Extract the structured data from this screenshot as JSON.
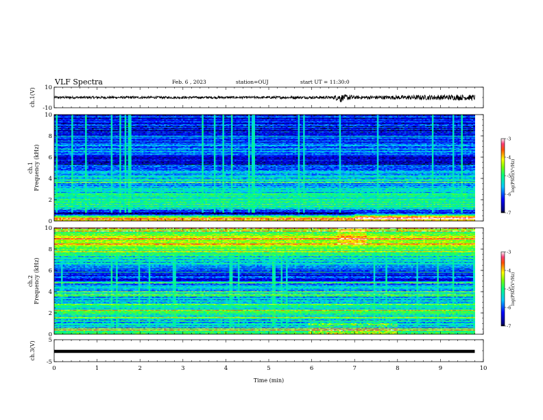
{
  "header": {
    "title": "VLF Spectra",
    "date": "Feb. 6 , 2023",
    "station": "station=OUJ",
    "start": "start UT = 11:30:0"
  },
  "chart_data": [
    {
      "type": "line",
      "panel": "ch1-waveform",
      "ylabel": "ch.1(V)",
      "ylim": [
        -10,
        10
      ],
      "ytick_labels": [
        "10",
        "-10"
      ],
      "xlim": [
        0,
        10
      ],
      "x": [
        0,
        0.5,
        1,
        1.5,
        2,
        2.5,
        3,
        3.5,
        4,
        4.5,
        5,
        5.5,
        6,
        6.5,
        6.68,
        7,
        7.5,
        8,
        8.5,
        9,
        9.5,
        9.8
      ],
      "amplitude_envelope": [
        1.2,
        1.1,
        1.2,
        1.1,
        1.2,
        1.1,
        1.2,
        1.1,
        1.2,
        1.1,
        1.2,
        1.3,
        1.3,
        1.3,
        5.5,
        1.6,
        1.8,
        2.0,
        2.3,
        2.5,
        2.7,
        2.7
      ],
      "baseline": 0
    },
    {
      "type": "heatmap",
      "panel": "ch1-spectrogram",
      "ylabel_channel": "ch.1",
      "ylabel": "Frequency (kHz)",
      "ylim": [
        0,
        10
      ],
      "ytick_labels": [
        "0",
        "2",
        "4",
        "6",
        "8",
        "10"
      ],
      "xlim": [
        0,
        10
      ],
      "data_end_min": 9.8,
      "colorbar": {
        "label": "log(PSD)(V²/Hz)",
        "range": [
          -7,
          -3
        ],
        "tick_labels": [
          "-3",
          "-4",
          "-5",
          "-6",
          "-7"
        ]
      },
      "freq_kHz": [
        0.25,
        0.75,
        1.25,
        1.75,
        2.25,
        2.75,
        3.25,
        3.75,
        4.25,
        4.75,
        5.25,
        5.75,
        6.25,
        6.75,
        7.25,
        7.75,
        8.25,
        8.75,
        9.25,
        9.75
      ],
      "log_psd_profile": [
        -3.8,
        -6.7,
        -5.2,
        -4.9,
        -5.0,
        -5.4,
        -5.6,
        -5.6,
        -5.5,
        -5.8,
        -6.4,
        -6.5,
        -6.0,
        -5.7,
        -6.0,
        -6.1,
        -6.2,
        -6.4,
        -6.3,
        -6.3
      ]
    },
    {
      "type": "heatmap",
      "panel": "ch2-spectrogram",
      "ylabel_channel": "ch.2",
      "ylabel": "Frequency (kHz)",
      "ylim": [
        0,
        10
      ],
      "ytick_labels": [
        "0",
        "2",
        "4",
        "6",
        "8",
        "10"
      ],
      "xlim": [
        0,
        10
      ],
      "data_end_min": 9.8,
      "colorbar": {
        "label": "log(PSD)(V²/Hz)",
        "range": [
          -7,
          -3
        ],
        "tick_labels": [
          "-3",
          "-4",
          "-5",
          "-6",
          "-7"
        ]
      },
      "freq_kHz": [
        0.25,
        0.75,
        1.25,
        1.75,
        2.25,
        2.75,
        3.25,
        3.75,
        4.25,
        4.75,
        5.25,
        5.75,
        6.25,
        6.75,
        7.25,
        7.75,
        8.25,
        8.75,
        9.25,
        9.75
      ],
      "log_psd_profile": [
        -4.9,
        -5.6,
        -5.4,
        -5.3,
        -5.1,
        -5.3,
        -5.6,
        -5.7,
        -5.5,
        -5.7,
        -6.2,
        -6.3,
        -5.9,
        -5.6,
        -5.3,
        -5.0,
        -4.8,
        -4.6,
        -4.5,
        -4.6
      ]
    },
    {
      "type": "line",
      "panel": "ch3-waveform",
      "ylabel": "ch.3(V)",
      "ylim": [
        -5,
        5
      ],
      "ytick_labels": [
        "5",
        "-5"
      ],
      "xlim": [
        0,
        10
      ],
      "x": [
        0,
        9.8
      ],
      "y": [
        -0.3,
        -0.3
      ],
      "xlabel": "Time (min)",
      "xtick_labels": [
        "0",
        "1",
        "2",
        "3",
        "4",
        "5",
        "6",
        "7",
        "8",
        "9",
        "10"
      ]
    }
  ]
}
